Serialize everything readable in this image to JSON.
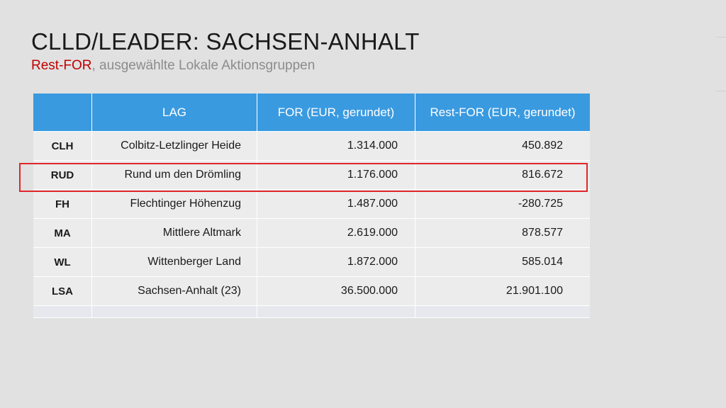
{
  "slide": {
    "title": "CLLD/LEADER: SACHSEN-ANHALT",
    "subtitle_accent": "Rest-FOR",
    "subtitle_rest": ", ausgewählte Lokale Aktionsgruppen"
  },
  "table": {
    "headers": [
      "",
      "LAG",
      "FOR (EUR, gerundet)",
      "Rest-FOR (EUR, gerundet)"
    ],
    "rows": [
      {
        "code": "CLH",
        "lag": "Colbitz-Letzlinger Heide",
        "for": "1.314.000",
        "rest_for": "450.892"
      },
      {
        "code": "RUD",
        "lag": "Rund um den Drömling",
        "for": "1.176.000",
        "rest_for": "816.672"
      },
      {
        "code": "FH",
        "lag": "Flechtinger Höhenzug",
        "for": "1.487.000",
        "rest_for": "-280.725"
      },
      {
        "code": "MA",
        "lag": "Mittlere Altmark",
        "for": "2.619.000",
        "rest_for": "878.577"
      },
      {
        "code": "WL",
        "lag": "Wittenberger Land",
        "for": "1.872.000",
        "rest_for": "585.014"
      },
      {
        "code": "LSA",
        "lag": "Sachsen-Anhalt (23)",
        "for": "36.500.000",
        "rest_for": "21.901.100"
      }
    ],
    "highlighted_row_code": "RUD"
  },
  "colors": {
    "background": "#e1e1e1",
    "header": "#3a9ae0",
    "accent": "#c00000",
    "highlight": "#e0262a"
  }
}
